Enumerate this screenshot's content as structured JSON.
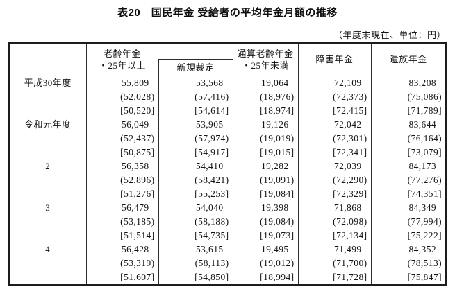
{
  "title": "表20　国民年金 受給者の平均年金月額の推移",
  "unit_note": "（年度末現在、単位：円）",
  "table": {
    "header": {
      "old_age_line1": "老齢年金",
      "old_age_line2": "・25年以上",
      "new_award": "新規裁定",
      "combined_line1": "通算老齢年金",
      "combined_line2": "・25年未満",
      "disability": "障害年金",
      "survivors": "遺族年金"
    },
    "rows": [
      {
        "label": "平成30年度",
        "lines": [
          {
            "type": "main",
            "values": [
              "55,809",
              "53,568",
              "19,064",
              "72,109",
              "83,208"
            ]
          },
          {
            "type": "paren",
            "values": [
              "(52,028)",
              "(57,416)",
              "(18,976)",
              "(72,373)",
              "(75,086)"
            ]
          },
          {
            "type": "bracket",
            "values": [
              "[50,520]",
              "[54,614]",
              "[18,974]",
              "[72,415]",
              "[71,789]"
            ]
          }
        ]
      },
      {
        "label": "令和元年度",
        "lines": [
          {
            "type": "main",
            "values": [
              "56,049",
              "53,905",
              "19,126",
              "72,042",
              "83,644"
            ]
          },
          {
            "type": "paren",
            "values": [
              "(52,437)",
              "(57,974)",
              "(19,019)",
              "(72,301)",
              "(76,164)"
            ]
          },
          {
            "type": "bracket",
            "values": [
              "[50,875]",
              "[54,917]",
              "[19,015]",
              "[72,341]",
              "[73,079]"
            ]
          }
        ]
      },
      {
        "label": "2",
        "lines": [
          {
            "type": "main",
            "values": [
              "56,358",
              "54,410",
              "19,282",
              "72,039",
              "84,173"
            ]
          },
          {
            "type": "paren",
            "values": [
              "(52,896)",
              "(58,421)",
              "(19,091)",
              "(72,290)",
              "(77,276)"
            ]
          },
          {
            "type": "bracket",
            "values": [
              "[51,276]",
              "[55,253]",
              "[19,084]",
              "[72,329]",
              "[74,351]"
            ]
          }
        ]
      },
      {
        "label": "3",
        "lines": [
          {
            "type": "main",
            "values": [
              "56,479",
              "54,040",
              "19,398",
              "71,868",
              "84,349"
            ]
          },
          {
            "type": "paren",
            "values": [
              "(53,185)",
              "(58,188)",
              "(19,084)",
              "(72,098)",
              "(77,994)"
            ]
          },
          {
            "type": "bracket",
            "values": [
              "[51,514]",
              "[54,735]",
              "[19,073]",
              "[72,134]",
              "[75,222]"
            ]
          }
        ]
      },
      {
        "label": "4",
        "lines": [
          {
            "type": "main",
            "values": [
              "56,428",
              "53,615",
              "19,495",
              "71,499",
              "84,352"
            ]
          },
          {
            "type": "paren",
            "values": [
              "(53,319)",
              "(58,113)",
              "(19,012)",
              "(71,700)",
              "(78,513)"
            ]
          },
          {
            "type": "bracket",
            "values": [
              "[51,607]",
              "[54,850]",
              "[18,994]",
              "[71,728]",
              "[75,847]"
            ]
          }
        ]
      }
    ]
  },
  "chart_data": {
    "type": "table",
    "title": "表20　国民年金 受給者の平均年金月額の推移",
    "unit": "円",
    "columns": [
      "老齢年金・25年以上",
      "老齢年金・25年以上（新規裁定）",
      "通算老齢年金・25年未満",
      "障害年金",
      "遺族年金"
    ],
    "rows": [
      "平成30年度",
      "令和元年度",
      "令和2年度",
      "令和3年度",
      "令和4年度"
    ],
    "values_main": [
      [
        55809,
        53568,
        19064,
        72109,
        83208
      ],
      [
        56049,
        53905,
        19126,
        72042,
        83644
      ],
      [
        56358,
        54410,
        19282,
        72039,
        84173
      ],
      [
        56479,
        54040,
        19398,
        71868,
        84349
      ],
      [
        56428,
        53615,
        19495,
        71499,
        84352
      ]
    ],
    "values_paren": [
      [
        52028,
        57416,
        18976,
        72373,
        75086
      ],
      [
        52437,
        57974,
        19019,
        72301,
        76164
      ],
      [
        52896,
        58421,
        19091,
        72290,
        77276
      ],
      [
        53185,
        58188,
        19084,
        72098,
        77994
      ],
      [
        53319,
        58113,
        19012,
        71700,
        78513
      ]
    ],
    "values_bracket": [
      [
        50520,
        54614,
        18974,
        72415,
        71789
      ],
      [
        50875,
        54917,
        19015,
        72341,
        73079
      ],
      [
        51276,
        55253,
        19084,
        72329,
        74351
      ],
      [
        51514,
        54735,
        19073,
        72134,
        75222
      ],
      [
        51607,
        54850,
        18994,
        71728,
        75847
      ]
    ]
  }
}
